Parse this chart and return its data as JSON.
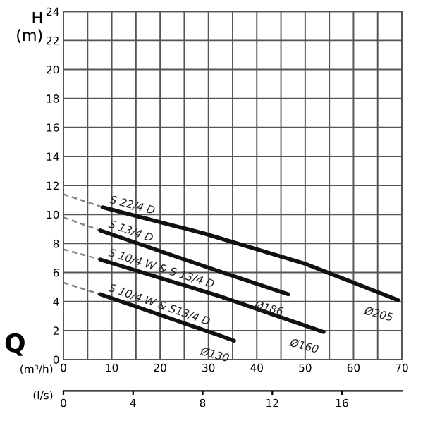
{
  "chart_data": {
    "type": "line",
    "ylabel": "H\n(m)",
    "xlabel": "(m³/h)",
    "x2label": "(l/s)",
    "xlim": [
      0,
      70
    ],
    "ylim": [
      0,
      24
    ],
    "xticks": [
      0,
      {
        "value": 5,
        "label": null
      },
      10,
      {
        "value": 15,
        "label": null
      },
      20,
      {
        "value": 25,
        "label": null
      },
      30,
      {
        "value": 35,
        "label": null
      },
      40,
      {
        "value": 45,
        "label": null
      },
      50,
      {
        "value": 55,
        "label": null
      },
      60,
      {
        "value": 65,
        "label": null
      },
      70
    ],
    "yticks": [
      0,
      2,
      4,
      6,
      8,
      10,
      12,
      14,
      16,
      18,
      20,
      22,
      24
    ],
    "x2lim": [
      0,
      19.44
    ],
    "x2ticks": [
      0,
      4,
      8,
      12,
      16
    ],
    "grid": true,
    "marker": "none",
    "series": [
      {
        "x": [
          0,
          8.1
        ],
        "values": [
          11.4,
          10.5
        ],
        "color": "#888888",
        "line_style": "dashed"
      },
      {
        "name": "S 22/4 D",
        "x": [
          8.1,
          29,
          50,
          69.2
        ],
        "values": [
          10.5,
          8.7,
          6.6,
          4.1
        ],
        "color": "#111111",
        "line_style": "solid"
      },
      {
        "x": [
          0,
          7.6
        ],
        "values": [
          9.8,
          8.9
        ],
        "color": "#888888",
        "line_style": "dashed"
      },
      {
        "name": "S 13/4 D",
        "x": [
          7.6,
          32,
          46.5
        ],
        "values": [
          8.9,
          6.1,
          4.5
        ],
        "color": "#111111",
        "line_style": "solid"
      },
      {
        "x": [
          0,
          7.6
        ],
        "values": [
          7.6,
          6.9
        ],
        "color": "#888888",
        "line_style": "dashed"
      },
      {
        "name": "S 10/4 W & S 13/4 D",
        "x": [
          7.6,
          32,
          53.8
        ],
        "values": [
          6.9,
          4.4,
          1.9
        ],
        "color": "#111111",
        "line_style": "solid"
      },
      {
        "x": [
          0,
          7.6
        ],
        "values": [
          5.3,
          4.5
        ],
        "color": "#888888",
        "line_style": "dashed"
      },
      {
        "name": "S 10/4 W & S13/4 D",
        "x": [
          7.6,
          32,
          35.3
        ],
        "values": [
          4.5,
          1.7,
          1.3
        ],
        "color": "#111111",
        "line_style": "solid"
      }
    ],
    "annotations": [
      "Q",
      {
        "text": "Ø205",
        "x": 69.2,
        "y": 4.1
      },
      {
        "text": "Ø186",
        "x": 46.5,
        "y": 4.5
      },
      {
        "text": "Ø160",
        "x": 53.8,
        "y": 1.9
      },
      {
        "text": "Ø130",
        "x": 35.3,
        "y": 1.3
      }
    ]
  }
}
